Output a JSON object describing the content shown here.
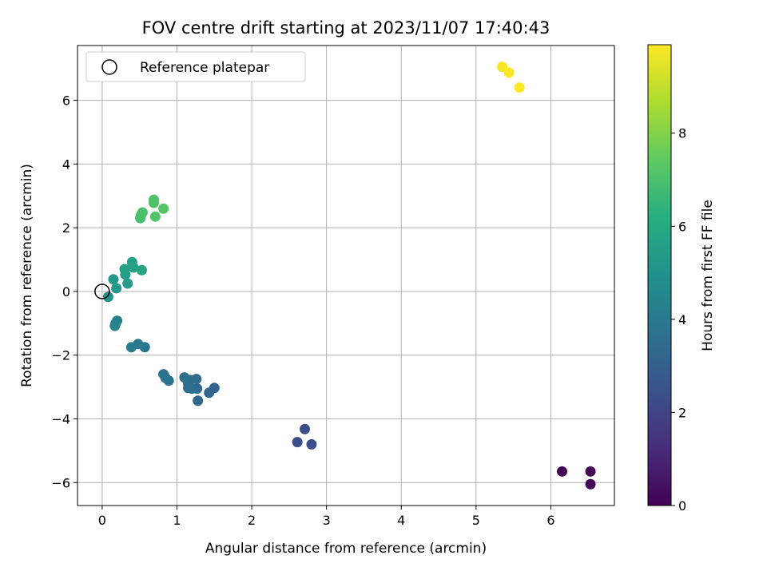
{
  "chart_data": {
    "type": "scatter",
    "title": "FOV centre drift starting at 2023/11/07 17:40:43",
    "xlabel": "Angular distance from reference (arcmin)",
    "ylabel": "Rotation from reference (arcmin)",
    "xlim": [
      -0.33,
      6.85
    ],
    "ylim": [
      -6.72,
      7.72
    ],
    "x_ticks": [
      0,
      1,
      2,
      3,
      4,
      5,
      6
    ],
    "y_ticks": [
      -6,
      -4,
      -2,
      0,
      2,
      4,
      6
    ],
    "grid": true,
    "legend": {
      "placement": "top-left",
      "entries": [
        "Reference platepar"
      ]
    },
    "reference_point": {
      "x": 0,
      "y": 0
    },
    "colorbar": {
      "label": "Hours from first FF file",
      "min": 0,
      "max": 9.9,
      "ticks": [
        0,
        2,
        4,
        6,
        8
      ],
      "colormap": "viridis"
    },
    "points": [
      {
        "x": 6.15,
        "y": -5.65,
        "h": 0.0
      },
      {
        "x": 6.53,
        "y": -5.65,
        "h": 0.1
      },
      {
        "x": 6.53,
        "y": -6.05,
        "h": 0.15
      },
      {
        "x": 2.61,
        "y": -4.73,
        "h": 2.3
      },
      {
        "x": 2.71,
        "y": -4.32,
        "h": 2.35
      },
      {
        "x": 2.8,
        "y": -4.8,
        "h": 2.4
      },
      {
        "x": 1.5,
        "y": -3.03,
        "h": 3.2
      },
      {
        "x": 1.43,
        "y": -3.18,
        "h": 3.25
      },
      {
        "x": 1.28,
        "y": -3.43,
        "h": 3.3
      },
      {
        "x": 1.27,
        "y": -3.05,
        "h": 3.35
      },
      {
        "x": 1.26,
        "y": -2.75,
        "h": 3.4
      },
      {
        "x": 1.18,
        "y": -2.78,
        "h": 3.45
      },
      {
        "x": 1.15,
        "y": -2.9,
        "h": 3.5
      },
      {
        "x": 1.15,
        "y": -3.03,
        "h": 3.55
      },
      {
        "x": 1.2,
        "y": -3.05,
        "h": 3.6
      },
      {
        "x": 1.1,
        "y": -2.7,
        "h": 3.65
      },
      {
        "x": 0.82,
        "y": -2.6,
        "h": 3.7
      },
      {
        "x": 0.85,
        "y": -2.72,
        "h": 3.75
      },
      {
        "x": 0.89,
        "y": -2.8,
        "h": 3.8
      },
      {
        "x": 0.57,
        "y": -1.75,
        "h": 4.0
      },
      {
        "x": 0.48,
        "y": -1.65,
        "h": 4.05
      },
      {
        "x": 0.39,
        "y": -1.75,
        "h": 4.1
      },
      {
        "x": 0.2,
        "y": -0.92,
        "h": 4.3
      },
      {
        "x": 0.18,
        "y": -1.0,
        "h": 4.35
      },
      {
        "x": 0.17,
        "y": -1.08,
        "h": 4.4
      },
      {
        "x": 0.08,
        "y": -0.17,
        "h": 5.0
      },
      {
        "x": 0.19,
        "y": 0.1,
        "h": 5.2
      },
      {
        "x": 0.15,
        "y": 0.38,
        "h": 5.3
      },
      {
        "x": 0.34,
        "y": 0.25,
        "h": 5.4
      },
      {
        "x": 0.31,
        "y": 0.53,
        "h": 5.5
      },
      {
        "x": 0.3,
        "y": 0.7,
        "h": 5.55
      },
      {
        "x": 0.4,
        "y": 0.92,
        "h": 5.6
      },
      {
        "x": 0.42,
        "y": 0.75,
        "h": 5.65
      },
      {
        "x": 0.53,
        "y": 0.67,
        "h": 5.7
      },
      {
        "x": 0.51,
        "y": 2.3,
        "h": 6.9
      },
      {
        "x": 0.52,
        "y": 2.4,
        "h": 6.95
      },
      {
        "x": 0.54,
        "y": 2.48,
        "h": 7.0
      },
      {
        "x": 0.69,
        "y": 2.78,
        "h": 7.05
      },
      {
        "x": 0.69,
        "y": 2.88,
        "h": 7.1
      },
      {
        "x": 0.71,
        "y": 2.35,
        "h": 7.15
      },
      {
        "x": 0.82,
        "y": 2.6,
        "h": 7.2
      },
      {
        "x": 5.35,
        "y": 7.05,
        "h": 9.8
      },
      {
        "x": 5.44,
        "y": 6.87,
        "h": 9.85
      },
      {
        "x": 5.58,
        "y": 6.4,
        "h": 9.9
      }
    ]
  }
}
